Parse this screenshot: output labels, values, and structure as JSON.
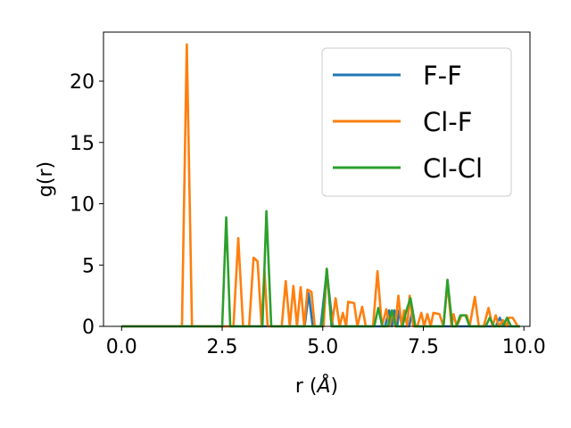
{
  "chart_data": {
    "type": "line",
    "xlabel": "r (",
    "xlabel_unit": "Å",
    "xlabel_close": ")",
    "ylabel": "g(r)",
    "xlim": [
      -0.45,
      10.15
    ],
    "ylim": [
      0,
      24
    ],
    "x_ticks": [
      0.0,
      2.5,
      5.0,
      7.5,
      10.0
    ],
    "x_tick_labels": [
      "0.0",
      "2.5",
      "5.0",
      "7.5",
      "10.0"
    ],
    "y_ticks": [
      0,
      5,
      10,
      15,
      20
    ],
    "y_tick_labels": [
      "0",
      "5",
      "10",
      "15",
      "20"
    ],
    "grid": false,
    "legend_position": "top-right",
    "series": [
      {
        "name": "F-F",
        "color": "#1f77b4",
        "points": [
          [
            0.0,
            0
          ],
          [
            4.55,
            0
          ],
          [
            4.65,
            2.7
          ],
          [
            4.75,
            0
          ],
          [
            4.95,
            0
          ],
          [
            5.1,
            4.5
          ],
          [
            5.25,
            0
          ],
          [
            6.55,
            0
          ],
          [
            6.65,
            1.3
          ],
          [
            6.72,
            0
          ],
          [
            6.78,
            1.3
          ],
          [
            6.85,
            0
          ],
          [
            6.9,
            1.3
          ],
          [
            6.97,
            0
          ],
          [
            7.15,
            0
          ],
          [
            7.22,
            1.2
          ],
          [
            7.28,
            0
          ],
          [
            9.3,
            0
          ],
          [
            9.4,
            0.7
          ],
          [
            9.5,
            0
          ],
          [
            9.9,
            0
          ]
        ]
      },
      {
        "name": "Cl-F",
        "color": "#ff7f0e",
        "points": [
          [
            0.0,
            0
          ],
          [
            1.5,
            0
          ],
          [
            1.62,
            23.0
          ],
          [
            1.75,
            0
          ],
          [
            2.78,
            0
          ],
          [
            2.9,
            7.2
          ],
          [
            3.02,
            0
          ],
          [
            3.17,
            0
          ],
          [
            3.28,
            5.6
          ],
          [
            3.38,
            5.3
          ],
          [
            3.48,
            0
          ],
          [
            3.55,
            4.6
          ],
          [
            3.63,
            0
          ],
          [
            3.98,
            0
          ],
          [
            4.08,
            3.7
          ],
          [
            4.18,
            0
          ],
          [
            4.27,
            3.3
          ],
          [
            4.36,
            0
          ],
          [
            4.45,
            3.2
          ],
          [
            4.54,
            0
          ],
          [
            4.62,
            3.0
          ],
          [
            4.72,
            2.8
          ],
          [
            4.8,
            0
          ],
          [
            5.02,
            0
          ],
          [
            5.1,
            4.7
          ],
          [
            5.22,
            0
          ],
          [
            5.32,
            2.3
          ],
          [
            5.42,
            0
          ],
          [
            5.5,
            1.1
          ],
          [
            5.58,
            0
          ],
          [
            5.63,
            2.0
          ],
          [
            5.78,
            1.9
          ],
          [
            5.86,
            0
          ],
          [
            5.98,
            1.6
          ],
          [
            6.07,
            0
          ],
          [
            6.25,
            0
          ],
          [
            6.36,
            4.5
          ],
          [
            6.47,
            0
          ],
          [
            6.58,
            1.4
          ],
          [
            6.66,
            0
          ],
          [
            6.72,
            1.3
          ],
          [
            6.8,
            0
          ],
          [
            6.88,
            2.5
          ],
          [
            6.96,
            0
          ],
          [
            7.02,
            1.3
          ],
          [
            7.1,
            0
          ],
          [
            7.16,
            2.5
          ],
          [
            7.25,
            0
          ],
          [
            7.35,
            0
          ],
          [
            7.45,
            1.1
          ],
          [
            7.52,
            0
          ],
          [
            7.6,
            1.0
          ],
          [
            7.68,
            0
          ],
          [
            7.75,
            1.1
          ],
          [
            7.9,
            1.0
          ],
          [
            8.0,
            0
          ],
          [
            8.1,
            3.5
          ],
          [
            8.2,
            0
          ],
          [
            8.25,
            1.0
          ],
          [
            8.33,
            0
          ],
          [
            8.45,
            0.9
          ],
          [
            8.58,
            0.9
          ],
          [
            8.65,
            0
          ],
          [
            8.78,
            2.4
          ],
          [
            8.88,
            0
          ],
          [
            9.0,
            0
          ],
          [
            9.12,
            1.5
          ],
          [
            9.22,
            0
          ],
          [
            9.3,
            0.9
          ],
          [
            9.38,
            0
          ],
          [
            9.48,
            0.5
          ],
          [
            9.58,
            0
          ],
          [
            9.62,
            0.7
          ],
          [
            9.72,
            0.7
          ],
          [
            9.85,
            0
          ],
          [
            9.9,
            0
          ]
        ]
      },
      {
        "name": "Cl-Cl",
        "color": "#2ca02c",
        "points": [
          [
            0.0,
            0
          ],
          [
            2.5,
            0
          ],
          [
            2.6,
            8.9
          ],
          [
            2.7,
            0
          ],
          [
            3.5,
            0
          ],
          [
            3.6,
            9.4
          ],
          [
            3.72,
            0
          ],
          [
            4.98,
            0
          ],
          [
            5.1,
            4.7
          ],
          [
            5.22,
            0
          ],
          [
            6.28,
            0
          ],
          [
            6.38,
            1.5
          ],
          [
            6.48,
            0
          ],
          [
            6.62,
            0
          ],
          [
            6.72,
            1.3
          ],
          [
            6.82,
            0
          ],
          [
            6.98,
            0
          ],
          [
            7.08,
            1.3
          ],
          [
            7.18,
            2.3
          ],
          [
            7.3,
            0
          ],
          [
            8.0,
            0
          ],
          [
            8.1,
            3.8
          ],
          [
            8.22,
            0
          ],
          [
            8.32,
            0
          ],
          [
            8.42,
            0.9
          ],
          [
            8.55,
            0.9
          ],
          [
            8.65,
            0
          ],
          [
            9.05,
            0
          ],
          [
            9.15,
            0.7
          ],
          [
            9.25,
            0
          ],
          [
            9.48,
            0
          ],
          [
            9.58,
            0.7
          ],
          [
            9.68,
            0
          ],
          [
            9.9,
            0
          ]
        ]
      }
    ]
  }
}
